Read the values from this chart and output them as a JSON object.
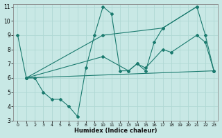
{
  "xlabel": "Humidex (Indice chaleur)",
  "xlim": [
    -0.5,
    23.5
  ],
  "ylim": [
    3,
    11.2
  ],
  "xticks": [
    0,
    1,
    2,
    3,
    4,
    5,
    6,
    7,
    8,
    9,
    10,
    11,
    12,
    13,
    14,
    15,
    16,
    17,
    18,
    19,
    20,
    21,
    22,
    23
  ],
  "yticks": [
    3,
    4,
    5,
    6,
    7,
    8,
    9,
    10,
    11
  ],
  "bg_color": "#c8e8e5",
  "line_color": "#1a7a6e",
  "grid_color": "#b0d8d4",
  "lines": [
    {
      "x": [
        0,
        1,
        2,
        3,
        4,
        5,
        6,
        7,
        8,
        9,
        10,
        11,
        12,
        13,
        14,
        15,
        16,
        17,
        21,
        22,
        23
      ],
      "y": [
        9,
        6,
        6,
        5,
        4.5,
        4.5,
        4,
        3.3,
        6.7,
        9,
        11,
        10.5,
        6.5,
        6.5,
        7,
        6.5,
        8.5,
        9.5,
        11,
        9,
        6.5
      ]
    },
    {
      "x": [
        1,
        10,
        17,
        21
      ],
      "y": [
        6,
        9,
        9.5,
        11
      ]
    },
    {
      "x": [
        1,
        10,
        13,
        14,
        15,
        17,
        18,
        21,
        22,
        23
      ],
      "y": [
        6,
        7.5,
        6.5,
        7,
        6.7,
        8,
        7.8,
        9,
        8.5,
        6.5
      ]
    },
    {
      "x": [
        1,
        23
      ],
      "y": [
        6,
        6.5
      ]
    }
  ]
}
